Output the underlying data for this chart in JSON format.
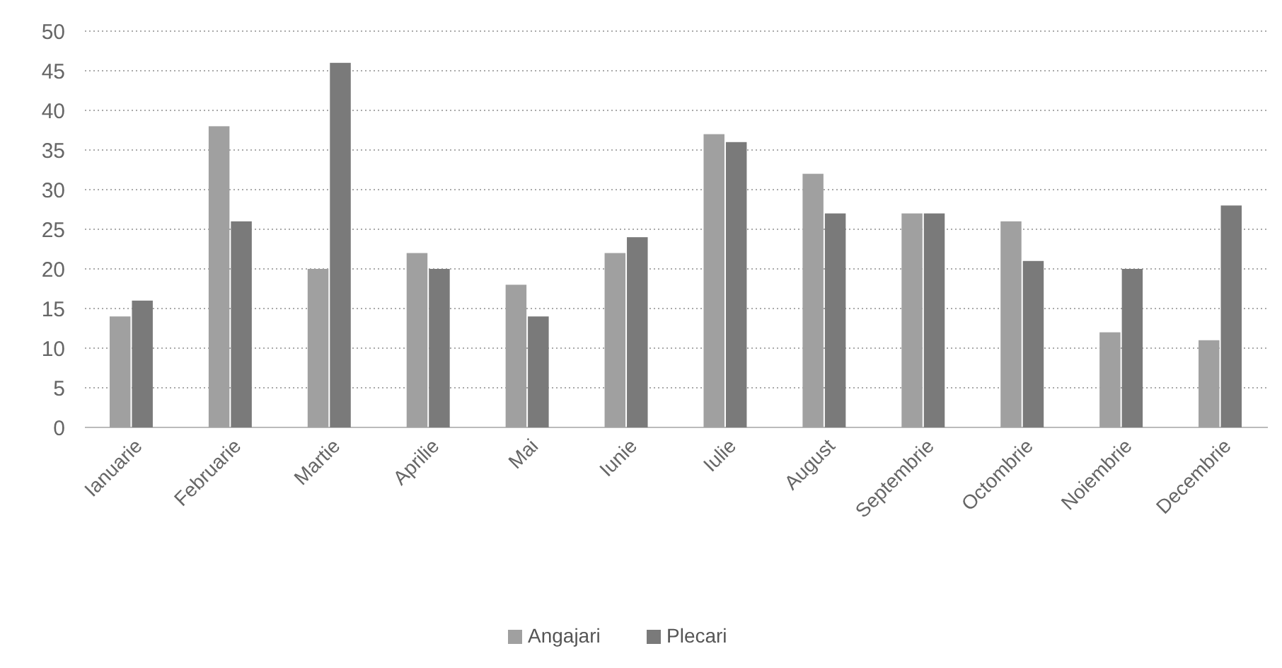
{
  "chart_data": {
    "type": "bar",
    "categories": [
      "Ianuarie",
      "Februarie",
      "Martie",
      "Aprilie",
      "Mai",
      "Iunie",
      "Iulie",
      "August",
      "Septembrie",
      "Octombrie",
      "Noiembrie",
      "Decembrie"
    ],
    "series": [
      {
        "name": "Angajari",
        "color": "#a0a0a0",
        "values": [
          14,
          38,
          20,
          22,
          18,
          22,
          37,
          32,
          27,
          26,
          12,
          11
        ]
      },
      {
        "name": "Plecari",
        "color": "#7a7a7a",
        "values": [
          16,
          26,
          46,
          20,
          14,
          24,
          36,
          27,
          27,
          21,
          20,
          28
        ]
      }
    ],
    "ylim": [
      0,
      50
    ],
    "yticks": [
      0,
      5,
      10,
      15,
      20,
      25,
      30,
      35,
      40,
      45,
      50
    ],
    "grid": "y",
    "legend": "bottom",
    "line_style": "dotted"
  }
}
